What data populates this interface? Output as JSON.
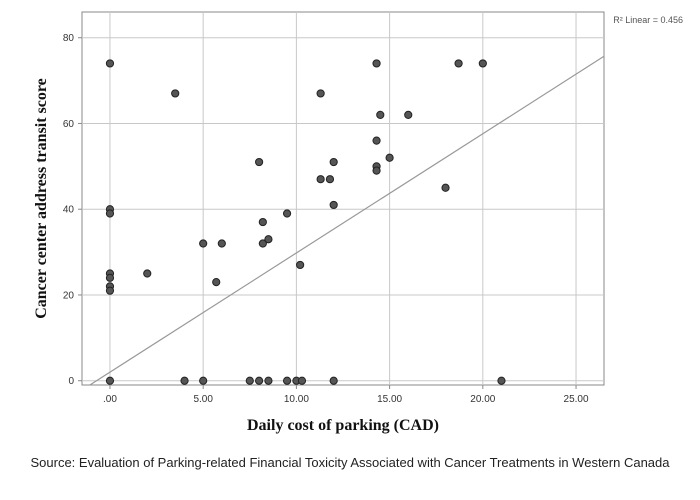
{
  "chart_data": {
    "type": "scatter",
    "title": "",
    "xlabel": "Daily cost of parking (CAD)",
    "ylabel": "Cancer center address transit score",
    "xlim": [
      -1.5,
      26.5
    ],
    "ylim": [
      -1,
      86
    ],
    "xticks": [
      0,
      5,
      10,
      15,
      20,
      25
    ],
    "xtick_labels": [
      ".00",
      "5.00",
      "10.00",
      "15.00",
      "20.00",
      "25.00"
    ],
    "yticks": [
      0,
      20,
      40,
      60,
      80
    ],
    "ytick_labels": [
      "0",
      "20",
      "40",
      "60",
      "80"
    ],
    "grid": true,
    "legend": "none",
    "fit_line": {
      "label": "R² Linear = 0.456",
      "intercept": 2.0,
      "slope": 2.78
    },
    "colors": {
      "point": "#555555",
      "point_edge": "#222222",
      "line": "#999999",
      "grid": "#c8c8c8"
    },
    "points": [
      {
        "x": 0,
        "y": 74
      },
      {
        "x": 0,
        "y": 40
      },
      {
        "x": 0,
        "y": 39
      },
      {
        "x": 0,
        "y": 25
      },
      {
        "x": 0,
        "y": 24
      },
      {
        "x": 0,
        "y": 22
      },
      {
        "x": 0,
        "y": 21
      },
      {
        "x": 0,
        "y": 0
      },
      {
        "x": 2,
        "y": 25
      },
      {
        "x": 3.5,
        "y": 67
      },
      {
        "x": 4,
        "y": 0
      },
      {
        "x": 5,
        "y": 32
      },
      {
        "x": 5,
        "y": 0
      },
      {
        "x": 5.7,
        "y": 23
      },
      {
        "x": 6,
        "y": 32
      },
      {
        "x": 7.5,
        "y": 0
      },
      {
        "x": 8,
        "y": 51
      },
      {
        "x": 8,
        "y": 0
      },
      {
        "x": 8.2,
        "y": 37
      },
      {
        "x": 8.2,
        "y": 32
      },
      {
        "x": 8.5,
        "y": 33
      },
      {
        "x": 8.5,
        "y": 0
      },
      {
        "x": 9.5,
        "y": 39
      },
      {
        "x": 9.5,
        "y": 0
      },
      {
        "x": 10,
        "y": 0
      },
      {
        "x": 10.2,
        "y": 27
      },
      {
        "x": 10.3,
        "y": 0
      },
      {
        "x": 11.3,
        "y": 67
      },
      {
        "x": 11.3,
        "y": 47
      },
      {
        "x": 11.8,
        "y": 47
      },
      {
        "x": 12,
        "y": 51
      },
      {
        "x": 12,
        "y": 41
      },
      {
        "x": 12,
        "y": 0
      },
      {
        "x": 14.3,
        "y": 74
      },
      {
        "x": 14.3,
        "y": 56
      },
      {
        "x": 14.3,
        "y": 50
      },
      {
        "x": 14.3,
        "y": 49
      },
      {
        "x": 14.5,
        "y": 62
      },
      {
        "x": 15,
        "y": 52
      },
      {
        "x": 16,
        "y": 62
      },
      {
        "x": 18,
        "y": 45
      },
      {
        "x": 18.7,
        "y": 74
      },
      {
        "x": 20,
        "y": 74
      },
      {
        "x": 21,
        "y": 0
      }
    ]
  },
  "source_text": "Source: Evaluation of Parking-related Financial Toxicity Associated with Cancer Treatments in Western Canada"
}
